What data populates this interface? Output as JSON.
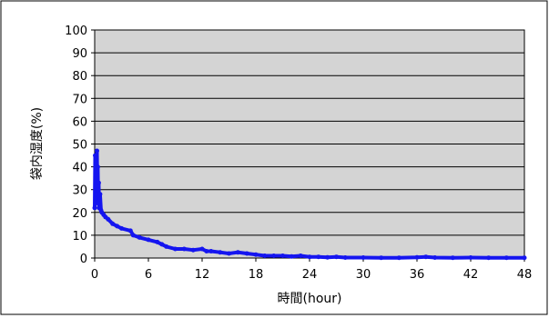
{
  "chart_data": {
    "type": "line",
    "title": "",
    "xlabel": "時間(hour)",
    "ylabel": "袋内湿度(%)",
    "xlim": [
      0,
      48
    ],
    "ylim": [
      0,
      100
    ],
    "xticks": [
      0,
      6,
      12,
      18,
      24,
      30,
      36,
      42,
      48
    ],
    "yticks": [
      0,
      10,
      20,
      30,
      40,
      50,
      60,
      70,
      80,
      90,
      100
    ],
    "grid": "horizontal",
    "legend": "none",
    "colors": {
      "series": "#1515f0",
      "plot_bg": "#d4d4d4",
      "grid": "#000000"
    },
    "series": [
      {
        "points": [
          [
            0.0,
            22
          ],
          [
            0.05,
            45
          ],
          [
            0.1,
            26
          ],
          [
            0.15,
            44
          ],
          [
            0.2,
            28
          ],
          [
            0.25,
            47
          ],
          [
            0.3,
            30
          ],
          [
            0.35,
            40
          ],
          [
            0.4,
            24
          ],
          [
            0.45,
            33
          ],
          [
            0.5,
            22
          ],
          [
            0.6,
            28
          ],
          [
            0.7,
            21
          ],
          [
            0.8,
            20
          ],
          [
            1.0,
            19
          ],
          [
            1.2,
            18
          ],
          [
            1.5,
            17
          ],
          [
            2.0,
            15
          ],
          [
            2.5,
            14
          ],
          [
            3.0,
            13
          ],
          [
            4.0,
            12
          ],
          [
            4.3,
            10
          ],
          [
            5.0,
            9
          ],
          [
            6.0,
            8
          ],
          [
            7.0,
            7
          ],
          [
            7.5,
            6
          ],
          [
            8.0,
            5
          ],
          [
            9.0,
            4
          ],
          [
            10.0,
            4
          ],
          [
            11.0,
            3.5
          ],
          [
            12.0,
            4
          ],
          [
            12.5,
            3
          ],
          [
            13.0,
            3
          ],
          [
            14.0,
            2.5
          ],
          [
            15.0,
            2
          ],
          [
            16.0,
            2.5
          ],
          [
            17.0,
            2
          ],
          [
            18.0,
            1.5
          ],
          [
            19.0,
            1
          ],
          [
            20.0,
            1
          ],
          [
            21.0,
            1
          ],
          [
            22.0,
            0.7
          ],
          [
            23.0,
            1
          ],
          [
            24.0,
            0.5
          ],
          [
            25.0,
            0.5
          ],
          [
            26.0,
            0.3
          ],
          [
            27.0,
            0.5
          ],
          [
            28.0,
            0.2
          ],
          [
            30.0,
            0.2
          ],
          [
            32.0,
            0.1
          ],
          [
            34.0,
            0.1
          ],
          [
            36.0,
            0.3
          ],
          [
            37.0,
            0.5
          ],
          [
            38.0,
            0.2
          ],
          [
            40.0,
            0.1
          ],
          [
            42.0,
            0.2
          ],
          [
            44.0,
            0.1
          ],
          [
            46.0,
            0.1
          ],
          [
            48.0,
            0.1
          ]
        ]
      }
    ]
  }
}
